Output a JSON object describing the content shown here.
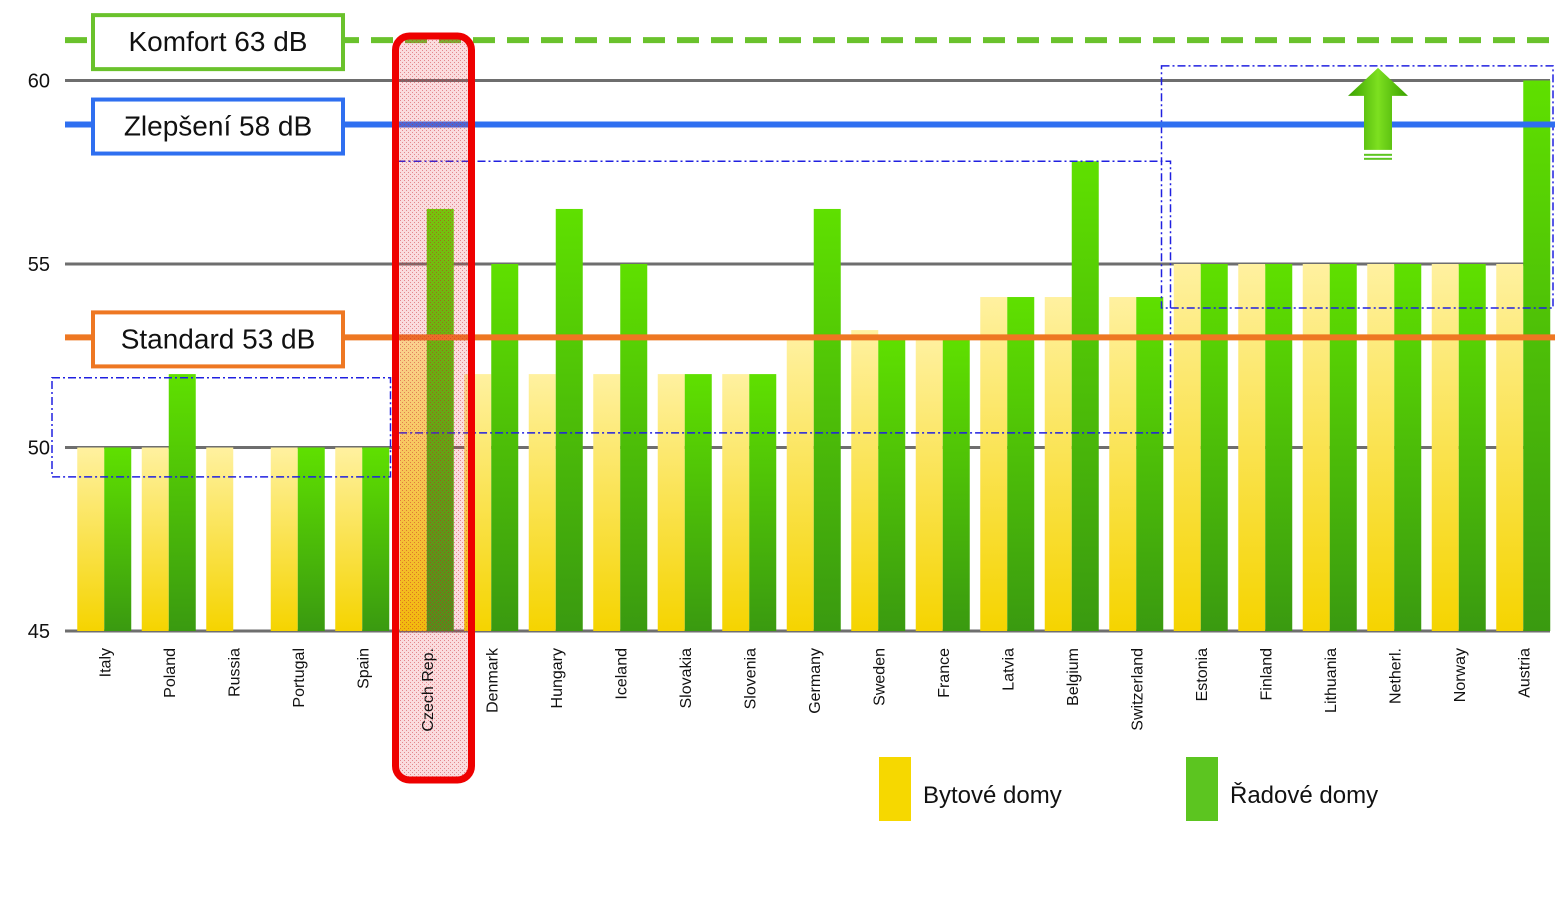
{
  "chart_data": {
    "type": "bar",
    "categories": [
      "Italy",
      "Poland",
      "Russia",
      "Portugal",
      "Spain",
      "Czech Rep.",
      "Denmark",
      "Hungary",
      "Iceland",
      "Slovakia",
      "Slovenia",
      "Germany",
      "Sweden",
      "France",
      "Latvia",
      "Belgium",
      "Switzerland",
      "Estonia",
      "Finland",
      "Lithuania",
      "Netherl.",
      "Norway",
      "Austria"
    ],
    "series": [
      {
        "name": "Bytové domy",
        "color": "#f6d800",
        "values": [
          50,
          50,
          50,
          50,
          50,
          53,
          52,
          52,
          52,
          52,
          52,
          53,
          53.2,
          53,
          54.1,
          54.1,
          54.1,
          55,
          55,
          55,
          55,
          55,
          55
        ]
      },
      {
        "name": "Řadové domy",
        "color": "#5cc520",
        "values": [
          50,
          52,
          null,
          50,
          50,
          56.5,
          55,
          56.5,
          55,
          52,
          52,
          56.5,
          53,
          53,
          54.1,
          57.8,
          54.1,
          55,
          55,
          55,
          55,
          55,
          60
        ]
      }
    ],
    "ylim": [
      45,
      62
    ],
    "yticks": [
      45,
      50,
      55,
      60
    ],
    "grid": true,
    "highlight_category": "Czech Rep.",
    "reference_lines": [
      {
        "label": "Komfort 63 dB",
        "value": 61.1,
        "color": "#6ac22c",
        "style": "dashed"
      },
      {
        "label": "Zlepšení 58 dB",
        "value": 58.8,
        "color": "#2f6ff0",
        "style": "solid"
      },
      {
        "label": "Standard 53 dB",
        "value": 53,
        "color": "#ee7722",
        "style": "solid"
      }
    ],
    "group_boxes": [
      {
        "y_range": [
          49.2,
          51.9
        ],
        "from": "Italy",
        "to": "Spain"
      },
      {
        "y_range": [
          50.4,
          57.8
        ],
        "from": "Czech Rep.",
        "to": "Switzerland"
      },
      {
        "y_range": [
          53.8,
          60.4
        ],
        "from": "Estonia",
        "to": "Austria"
      }
    ],
    "legend": {
      "position": "bottom"
    }
  }
}
